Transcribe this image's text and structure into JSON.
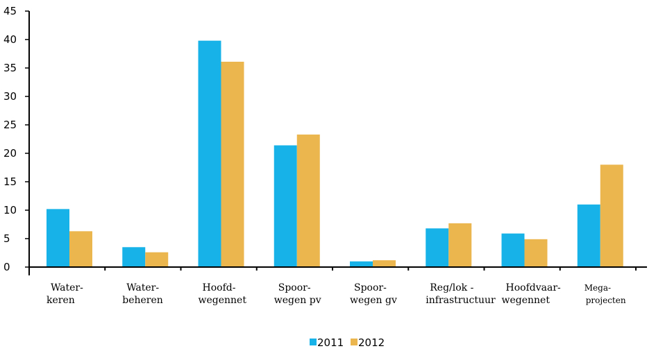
{
  "chart_data": {
    "type": "bar",
    "categories": [
      [
        "Water-",
        "keren"
      ],
      [
        "Water-",
        "beheren"
      ],
      [
        "Hoofd-",
        "wegennet"
      ],
      [
        "Spoor-",
        "wegen pv"
      ],
      [
        "Spoor-",
        "wegen gv"
      ],
      [
        "Reg/lok -",
        "infrastructuur"
      ],
      [
        "Hoofdvaar-",
        "wegennet"
      ],
      [
        "Mega-",
        "projecten"
      ]
    ],
    "series": [
      {
        "name": "2011",
        "color": "#17b3e8",
        "values": [
          10.2,
          3.5,
          39.8,
          21.4,
          1.0,
          6.8,
          5.9,
          11.0
        ]
      },
      {
        "name": "2012",
        "color": "#ecb64f",
        "values": [
          6.3,
          2.6,
          36.1,
          23.3,
          1.2,
          7.7,
          4.9,
          18.0
        ]
      }
    ],
    "ylim": [
      0,
      45
    ],
    "yticks": [
      0,
      5,
      10,
      15,
      20,
      25,
      30,
      35,
      40,
      45
    ],
    "title": "",
    "xlabel": "",
    "ylabel": "",
    "legend_position": "bottom-center",
    "grid": false
  }
}
